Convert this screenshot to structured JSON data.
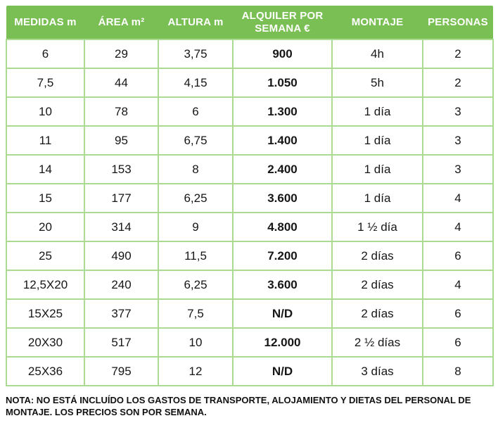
{
  "colors": {
    "header_bg": "#7abf53",
    "header_text": "#ffffff",
    "cell_border": "#aadb90",
    "body_text": "#161616"
  },
  "table": {
    "columns": [
      {
        "label": "MEDIDAS m"
      },
      {
        "label": "ÁREA m²"
      },
      {
        "label": "ALTURA m"
      },
      {
        "label": "ALQUILER POR SEMANA €"
      },
      {
        "label": "MONTAJE"
      },
      {
        "label": "PERSONAS"
      }
    ],
    "rows": [
      [
        "6",
        "29",
        "3,75",
        "900",
        "4h",
        "2"
      ],
      [
        "7,5",
        "44",
        "4,15",
        "1.050",
        "5h",
        "2"
      ],
      [
        "10",
        "78",
        "6",
        "1.300",
        "1 día",
        "3"
      ],
      [
        "11",
        "95",
        "6,75",
        "1.400",
        "1 día",
        "3"
      ],
      [
        "14",
        "153",
        "8",
        "2.400",
        "1 día",
        "3"
      ],
      [
        "15",
        "177",
        "6,25",
        "3.600",
        "1 día",
        "4"
      ],
      [
        "20",
        "314",
        "9",
        "4.800",
        "1 ½ día",
        "4"
      ],
      [
        "25",
        "490",
        "11,5",
        "7.200",
        "2 días",
        "6"
      ],
      [
        "12,5X20",
        "240",
        "6,25",
        "3.600",
        "2 días",
        "4"
      ],
      [
        "15X25",
        "377",
        "7,5",
        "N/D",
        "2 días",
        "6"
      ],
      [
        "20X30",
        "517",
        "10",
        "12.000",
        "2 ½ días",
        "6"
      ],
      [
        "25X36",
        "795",
        "12",
        "N/D",
        "3 días",
        "8"
      ]
    ]
  },
  "note": "NOTA: NO ESTÁ INCLUÍDO LOS GASTOS DE TRANSPORTE, ALOJAMIENTO Y DIETAS DEL PERSONAL DE MONTAJE. LOS PRECIOS SON POR SEMANA."
}
